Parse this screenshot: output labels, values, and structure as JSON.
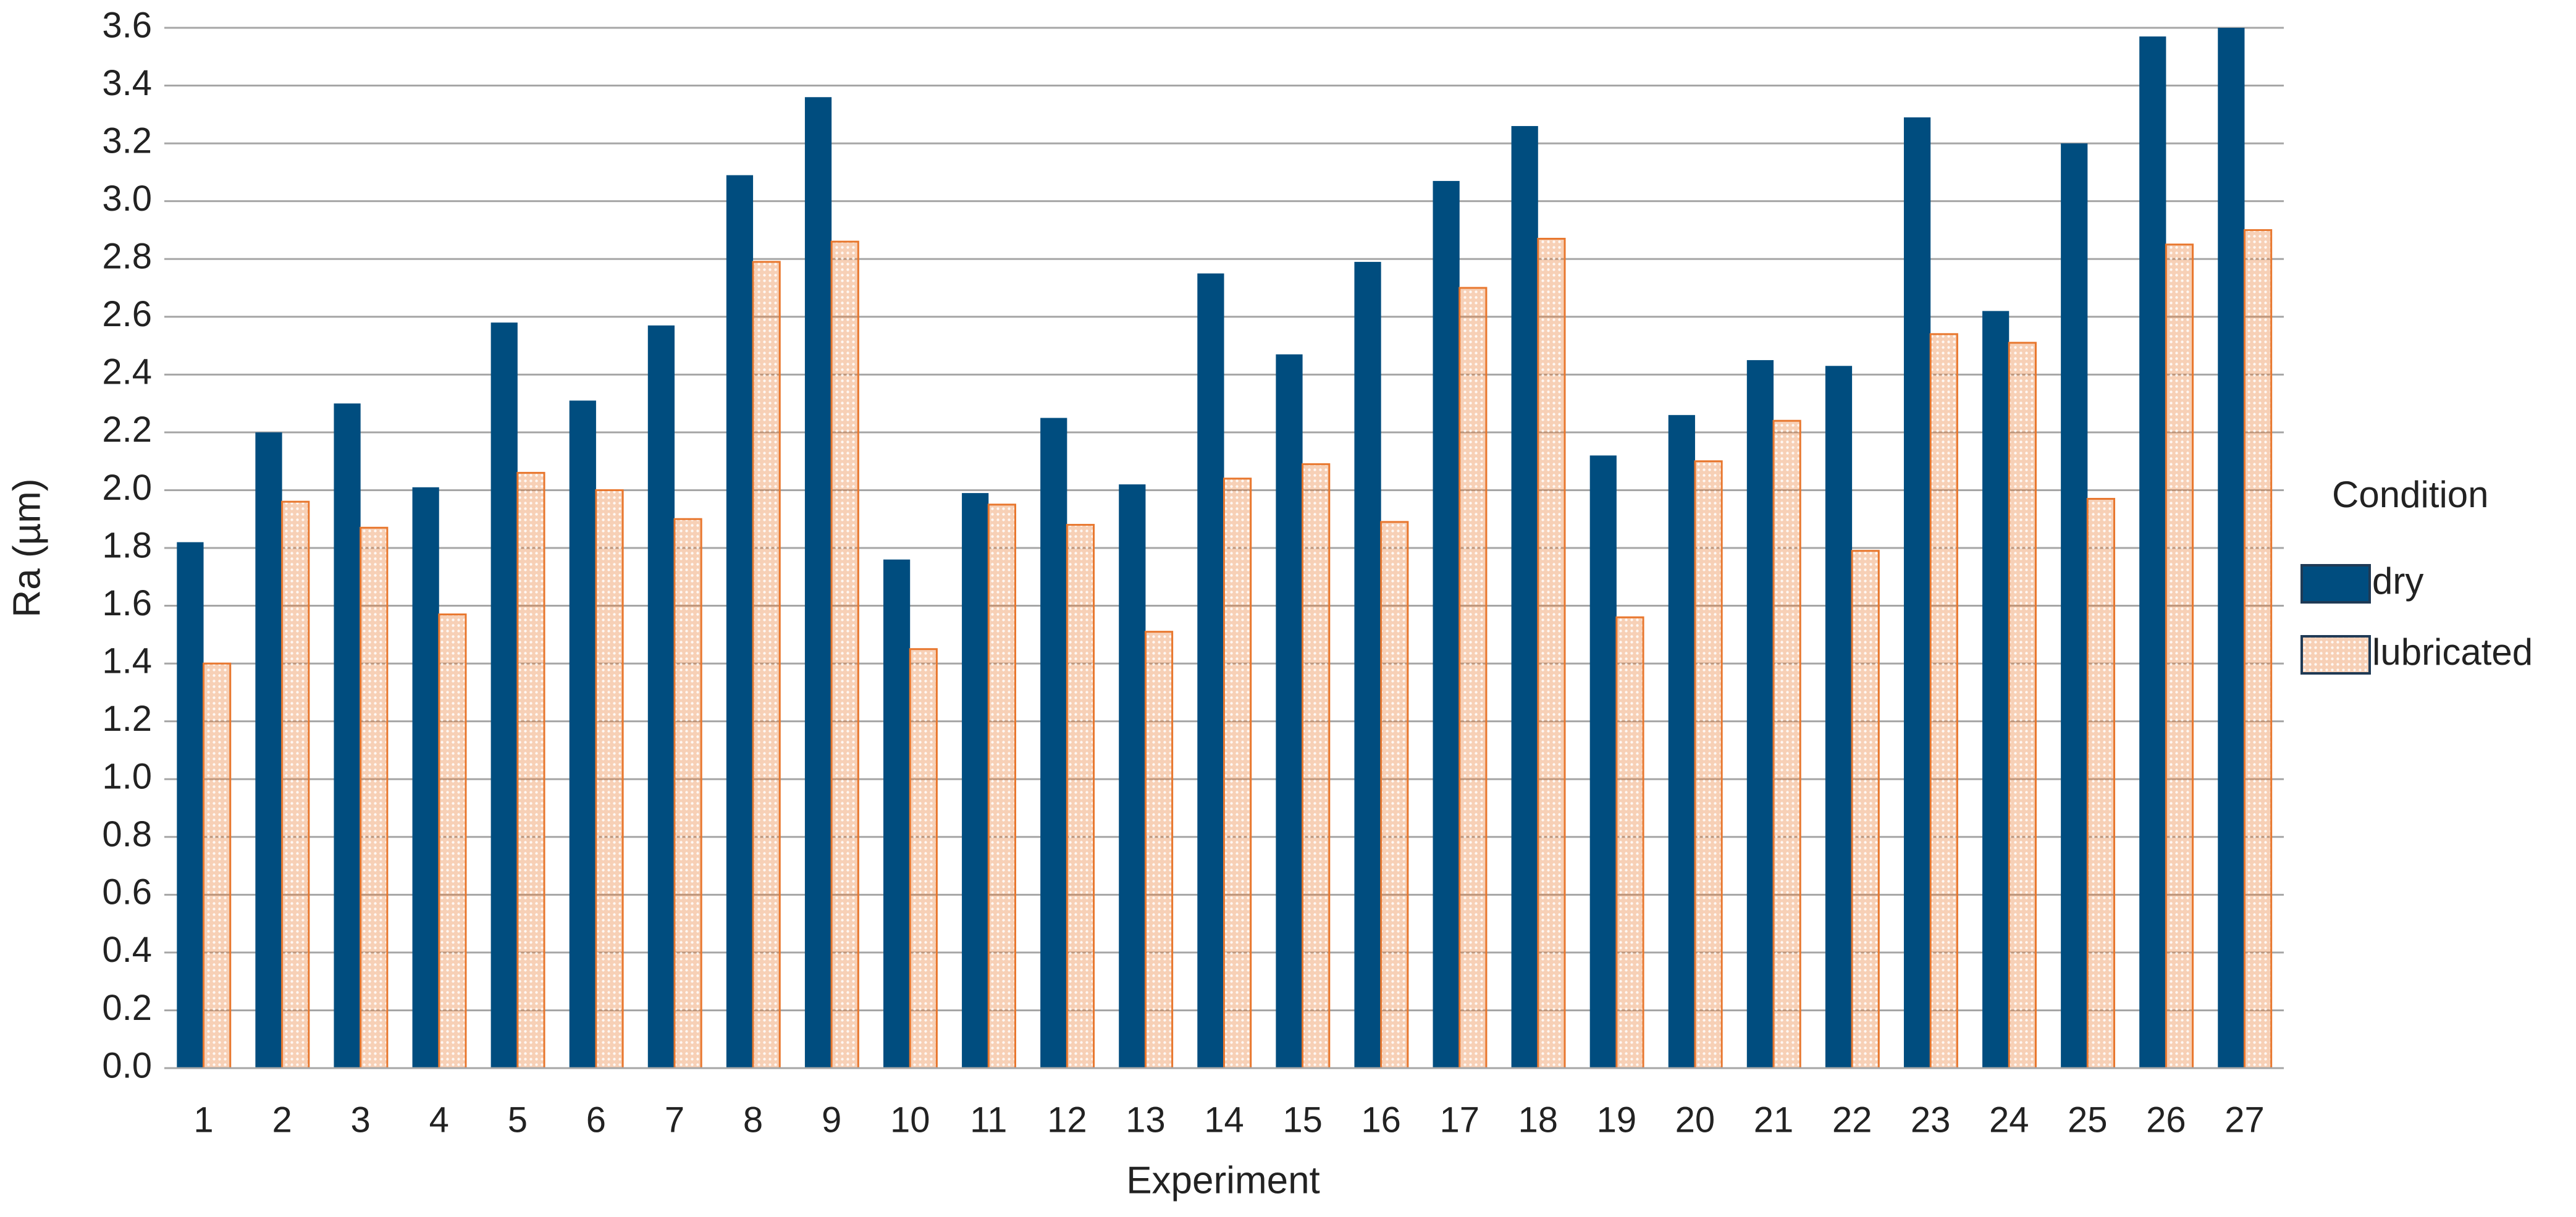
{
  "chart_data": {
    "type": "bar",
    "x_label": "Experiment",
    "y_label": "Ra (µm)",
    "legend_title": "Condition",
    "legend_position": "right",
    "grid": true,
    "categories": [
      "1",
      "2",
      "3",
      "4",
      "5",
      "6",
      "7",
      "8",
      "9",
      "10",
      "11",
      "12",
      "13",
      "14",
      "15",
      "16",
      "17",
      "18",
      "19",
      "20",
      "21",
      "22",
      "23",
      "24",
      "25",
      "26",
      "27"
    ],
    "series": [
      {
        "name": "dry",
        "color": "#004d7f",
        "values": [
          1.82,
          2.2,
          2.3,
          2.01,
          2.58,
          2.31,
          2.57,
          3.09,
          3.36,
          1.76,
          1.99,
          2.25,
          2.02,
          2.75,
          2.47,
          2.79,
          3.07,
          3.26,
          2.12,
          2.26,
          2.45,
          2.43,
          3.29,
          2.62,
          3.2,
          3.57,
          3.6
        ]
      },
      {
        "name": "lubricated",
        "color": "#e8772e",
        "values": [
          1.4,
          1.96,
          1.87,
          1.57,
          2.06,
          2.0,
          1.9,
          2.79,
          2.86,
          1.45,
          1.95,
          1.88,
          1.51,
          2.04,
          2.09,
          1.89,
          2.7,
          2.87,
          1.56,
          2.1,
          2.24,
          1.79,
          2.54,
          2.51,
          1.97,
          2.85,
          2.9
        ]
      }
    ],
    "ylim": [
      0,
      3.6
    ],
    "yticks": [
      {
        "value": 0,
        "label": "0.0"
      },
      {
        "value": 0.2,
        "label": "0.2"
      },
      {
        "value": 0.4,
        "label": "0.4"
      },
      {
        "value": 0.6,
        "label": "0.6"
      },
      {
        "value": 0.8,
        "label": "0.8"
      },
      {
        "value": 1,
        "label": "1.0"
      },
      {
        "value": 1.2,
        "label": "1.2"
      },
      {
        "value": 1.4,
        "label": "1.4"
      },
      {
        "value": 1.6,
        "label": "1.6"
      },
      {
        "value": 1.8,
        "label": "1.8"
      },
      {
        "value": 2,
        "label": "2.0"
      },
      {
        "value": 2.2,
        "label": "2.2"
      },
      {
        "value": 2.4,
        "label": "2.4"
      },
      {
        "value": 2.6,
        "label": "2.6"
      },
      {
        "value": 2.8,
        "label": "2.8"
      },
      {
        "value": 3,
        "label": "3.0"
      },
      {
        "value": 3.2,
        "label": "3.2"
      },
      {
        "value": 3.4,
        "label": "3.4"
      },
      {
        "value": 3.6,
        "label": "3.6"
      }
    ]
  }
}
